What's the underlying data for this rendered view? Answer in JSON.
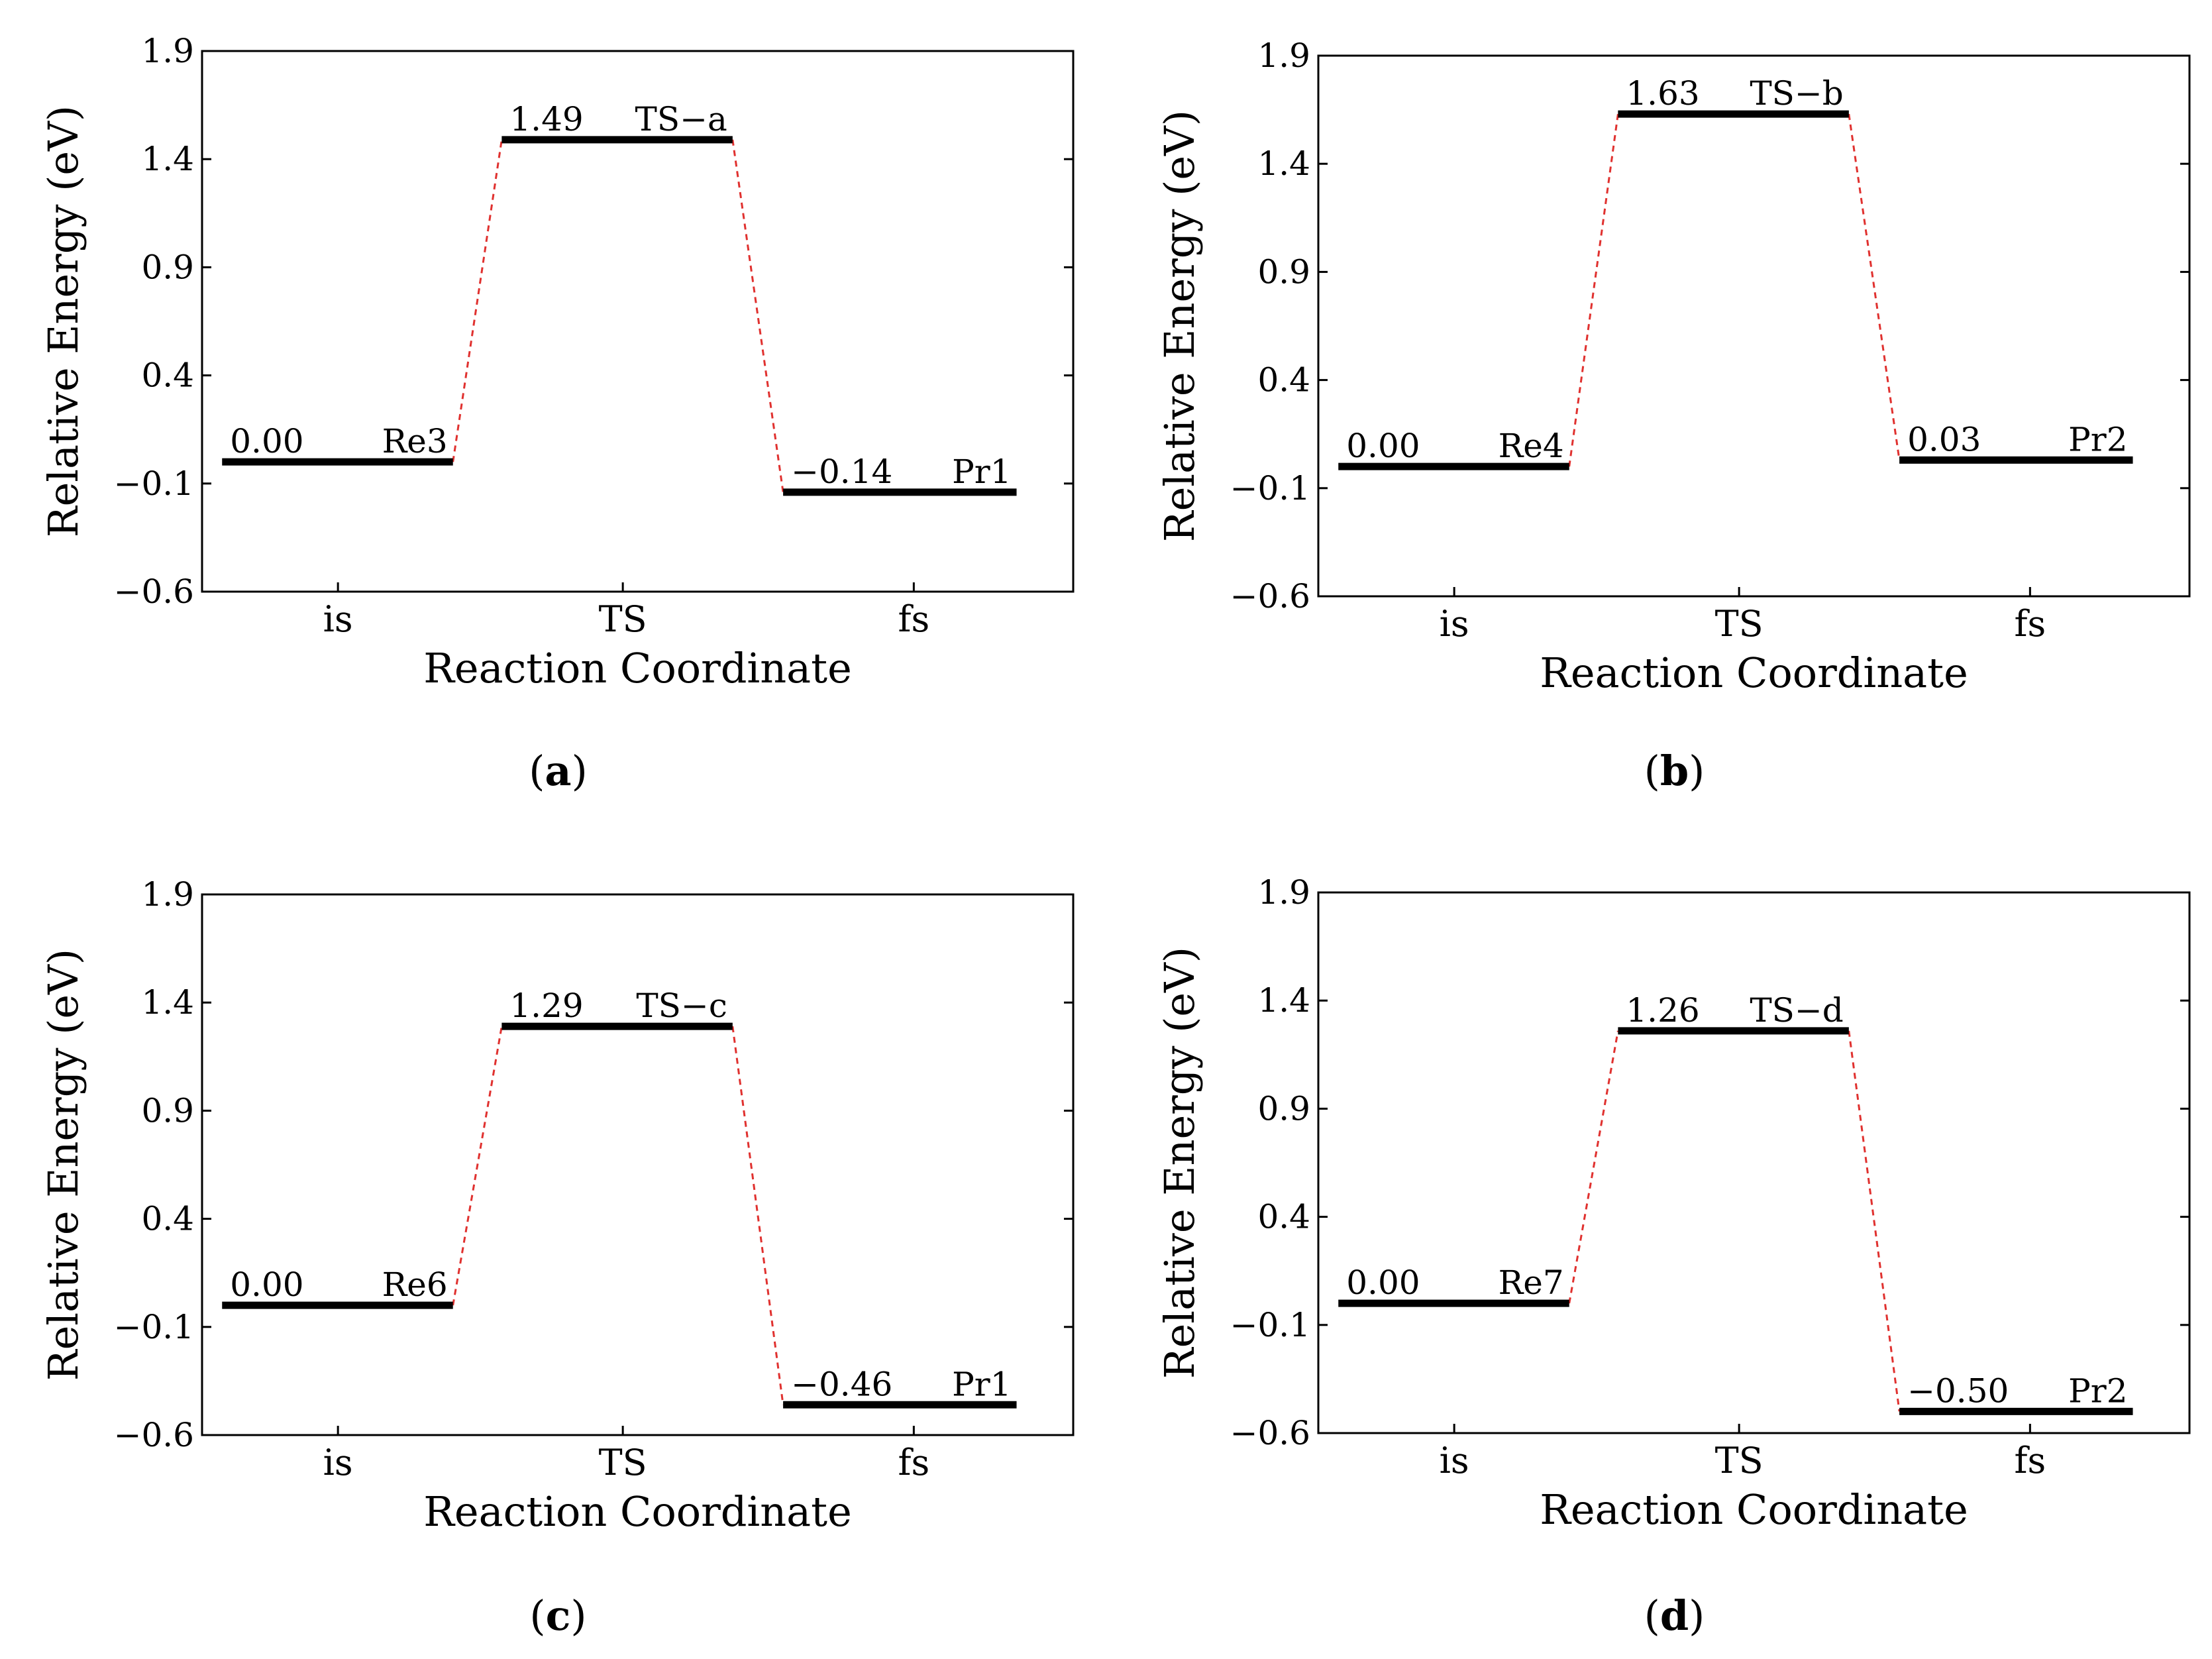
{
  "figure": {
    "panels": [
      {
        "panel_label": "(a)",
        "bold_letter": "a"
      },
      {
        "panel_label": "(b)",
        "bold_letter": "b"
      },
      {
        "panel_label": "(c)",
        "bold_letter": "c"
      },
      {
        "panel_label": "(d)",
        "bold_letter": "d"
      }
    ]
  },
  "chart_data": [
    {
      "type": "line",
      "title": "",
      "xlabel": "Reaction Coordinate",
      "ylabel": "Relative Energy (eV)",
      "categories": [
        "is",
        "TS",
        "fs"
      ],
      "ylim": [
        -0.6,
        1.9
      ],
      "yticks": [
        "1.9",
        "1.4",
        "0.9",
        "0.4",
        "−0.1",
        "−0.6"
      ],
      "ytick_values": [
        1.9,
        1.4,
        0.9,
        0.4,
        -0.1,
        -0.6
      ],
      "levels": [
        {
          "state": "is",
          "energy": 0.0,
          "value_label": "0.00",
          "name": "Re3"
        },
        {
          "state": "TS",
          "energy": 1.49,
          "value_label": "1.49",
          "name": "TS−a"
        },
        {
          "state": "fs",
          "energy": -0.14,
          "value_label": "−0.14",
          "name": "Pr1"
        }
      ],
      "connector_color": "#e0312f",
      "level_color": "#000000"
    },
    {
      "type": "line",
      "title": "",
      "xlabel": "Reaction Coordinate",
      "ylabel": "Relative Energy (eV)",
      "categories": [
        "is",
        "TS",
        "fs"
      ],
      "ylim": [
        -0.6,
        1.9
      ],
      "yticks": [
        "1.9",
        "1.4",
        "0.9",
        "0.4",
        "−0.1",
        "−0.6"
      ],
      "ytick_values": [
        1.9,
        1.4,
        0.9,
        0.4,
        -0.1,
        -0.6
      ],
      "levels": [
        {
          "state": "is",
          "energy": 0.0,
          "value_label": "0.00",
          "name": "Re4"
        },
        {
          "state": "TS",
          "energy": 1.63,
          "value_label": "1.63",
          "name": "TS−b"
        },
        {
          "state": "fs",
          "energy": 0.03,
          "value_label": "0.03",
          "name": "Pr2"
        }
      ],
      "connector_color": "#e0312f",
      "level_color": "#000000"
    },
    {
      "type": "line",
      "title": "",
      "xlabel": "Reaction Coordinate",
      "ylabel": "Relative Energy (eV)",
      "categories": [
        "is",
        "TS",
        "fs"
      ],
      "ylim": [
        -0.6,
        1.9
      ],
      "yticks": [
        "1.9",
        "1.4",
        "0.9",
        "0.4",
        "−0.1",
        "−0.6"
      ],
      "ytick_values": [
        1.9,
        1.4,
        0.9,
        0.4,
        -0.1,
        -0.6
      ],
      "levels": [
        {
          "state": "is",
          "energy": 0.0,
          "value_label": "0.00",
          "name": "Re6"
        },
        {
          "state": "TS",
          "energy": 1.29,
          "value_label": "1.29",
          "name": "TS−c"
        },
        {
          "state": "fs",
          "energy": -0.46,
          "value_label": "−0.46",
          "name": "Pr1"
        }
      ],
      "connector_color": "#e0312f",
      "level_color": "#000000"
    },
    {
      "type": "line",
      "title": "",
      "xlabel": "Reaction Coordinate",
      "ylabel": "Relative Energy (eV)",
      "categories": [
        "is",
        "TS",
        "fs"
      ],
      "ylim": [
        -0.6,
        1.9
      ],
      "yticks": [
        "1.9",
        "1.4",
        "0.9",
        "0.4",
        "−0.1",
        "−0.6"
      ],
      "ytick_values": [
        1.9,
        1.4,
        0.9,
        0.4,
        -0.1,
        -0.6
      ],
      "levels": [
        {
          "state": "is",
          "energy": 0.0,
          "value_label": "0.00",
          "name": "Re7"
        },
        {
          "state": "TS",
          "energy": 1.26,
          "value_label": "1.26",
          "name": "TS−d"
        },
        {
          "state": "fs",
          "energy": -0.5,
          "value_label": "−0.50",
          "name": "Pr2"
        }
      ],
      "connector_color": "#e0312f",
      "level_color": "#000000"
    }
  ]
}
